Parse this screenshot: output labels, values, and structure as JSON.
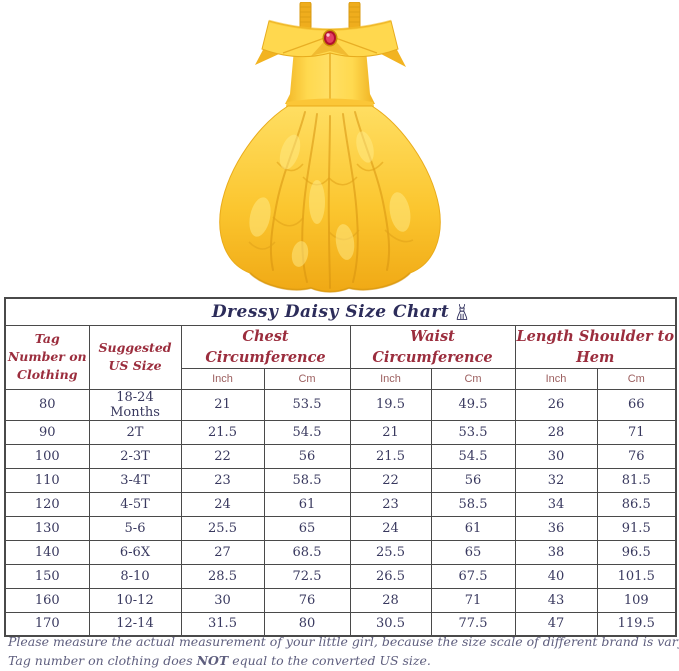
{
  "product_image": {
    "description": "Yellow off-shoulder layered satin princess dress with red gem brooch and shoulder straps",
    "colors": {
      "dress_main": "#FFD23E",
      "dress_highlight": "#FFEC8A",
      "dress_shadow": "#E09C12",
      "gem_red": "#B3112E"
    }
  },
  "chart_data": {
    "type": "table",
    "title": "Dressy Daisy Size Chart",
    "title_icon": "dress-icon",
    "column_groups": [
      {
        "label": "Tag Number on Clothing",
        "lines": [
          "Tag Number on",
          "Clothing"
        ],
        "sub": []
      },
      {
        "label": "Suggested US Size",
        "lines": [
          "Suggested",
          "US Size"
        ],
        "sub": []
      },
      {
        "label": "Chest Circumference",
        "sub": [
          "Inch",
          "Cm"
        ]
      },
      {
        "label": "Waist Circumference",
        "sub": [
          "Inch",
          "Cm"
        ]
      },
      {
        "label": "Length Shoulder to Hem",
        "sub": [
          "Inch",
          "Cm"
        ]
      }
    ],
    "rows": [
      [
        "80",
        "18-24 Months",
        "21",
        "53.5",
        "19.5",
        "49.5",
        "26",
        "66"
      ],
      [
        "90",
        "2T",
        "21.5",
        "54.5",
        "21",
        "53.5",
        "28",
        "71"
      ],
      [
        "100",
        "2-3T",
        "22",
        "56",
        "21.5",
        "54.5",
        "30",
        "76"
      ],
      [
        "110",
        "3-4T",
        "23",
        "58.5",
        "22",
        "56",
        "32",
        "81.5"
      ],
      [
        "120",
        "4-5T",
        "24",
        "61",
        "23",
        "58.5",
        "34",
        "86.5"
      ],
      [
        "130",
        "5-6",
        "25.5",
        "65",
        "24",
        "61",
        "36",
        "91.5"
      ],
      [
        "140",
        "6-6X",
        "27",
        "68.5",
        "25.5",
        "65",
        "38",
        "96.5"
      ],
      [
        "150",
        "8-10",
        "28.5",
        "72.5",
        "26.5",
        "67.5",
        "40",
        "101.5"
      ],
      [
        "160",
        "10-12",
        "30",
        "76",
        "28",
        "71",
        "43",
        "109"
      ],
      [
        "170",
        "12-14",
        "31.5",
        "80",
        "30.5",
        "77.5",
        "47",
        "119.5"
      ]
    ],
    "text_colors": {
      "title": "#2c2c5a",
      "group_header": "#9b2d3d",
      "sub_header": "#9c5f5f",
      "data": "#39395f"
    }
  },
  "notes": {
    "note1": "Please measure the actual measurement of your little girl, because the size scale of different brand is varying.",
    "note2_prefix": "Tag number on clothing does ",
    "note2_bold": "NOT",
    "note2_suffix": " equal to the converted US size.",
    "color": "#5e5e7e"
  }
}
